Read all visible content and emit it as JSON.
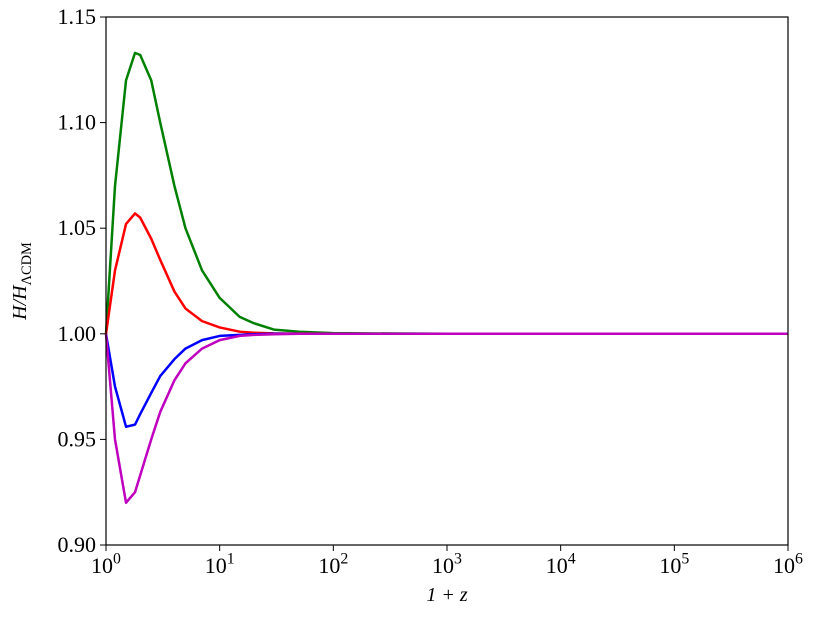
{
  "chart_data": {
    "type": "line",
    "xlabel": "1 + z",
    "ylabel": "H/H_ΛCDM",
    "xscale": "log",
    "x": [
      1,
      1.2,
      1.5,
      1.8,
      2,
      2.5,
      3,
      4,
      5,
      7,
      10,
      15,
      20,
      30,
      50,
      100,
      1000,
      1000000
    ],
    "series": [
      {
        "color": "#008000",
        "values": [
          1.0,
          1.07,
          1.12,
          1.133,
          1.132,
          1.12,
          1.1,
          1.07,
          1.05,
          1.03,
          1.017,
          1.008,
          1.005,
          1.002,
          1.001,
          1.0003,
          1.0,
          1.0
        ]
      },
      {
        "color": "#ff0000",
        "values": [
          1.0,
          1.03,
          1.052,
          1.057,
          1.055,
          1.045,
          1.035,
          1.02,
          1.012,
          1.006,
          1.003,
          1.001,
          1.0005,
          1.0002,
          1.0001,
          1.0,
          1.0,
          1.0
        ]
      },
      {
        "color": "#0000ff",
        "values": [
          1.0,
          0.975,
          0.956,
          0.957,
          0.962,
          0.972,
          0.98,
          0.988,
          0.993,
          0.997,
          0.999,
          0.9995,
          0.9998,
          1.0,
          1.0,
          1.0,
          1.0,
          1.0
        ]
      },
      {
        "color": "#bf00bf",
        "values": [
          1.0,
          0.95,
          0.92,
          0.925,
          0.933,
          0.95,
          0.963,
          0.978,
          0.986,
          0.993,
          0.997,
          0.999,
          0.9995,
          0.9998,
          1.0,
          1.0,
          1.0,
          1.0
        ]
      }
    ],
    "xlim": [
      1,
      1000000
    ],
    "xticks": [
      {
        "value": 1,
        "label": "10^0"
      },
      {
        "value": 10,
        "label": "10^1"
      },
      {
        "value": 100,
        "label": "10^2"
      },
      {
        "value": 1000,
        "label": "10^3"
      },
      {
        "value": 10000,
        "label": "10^4"
      },
      {
        "value": 100000,
        "label": "10^5"
      },
      {
        "value": 1000000,
        "label": "10^6"
      }
    ],
    "ylim": [
      0.9,
      1.15
    ],
    "yticks": [
      {
        "value": 0.9,
        "label": "0.90"
      },
      0.95,
      {
        "value": 1.0,
        "label": "1.00"
      },
      1.05,
      {
        "value": 1.1,
        "label": "1.10"
      },
      1.15
    ],
    "grid": false
  }
}
